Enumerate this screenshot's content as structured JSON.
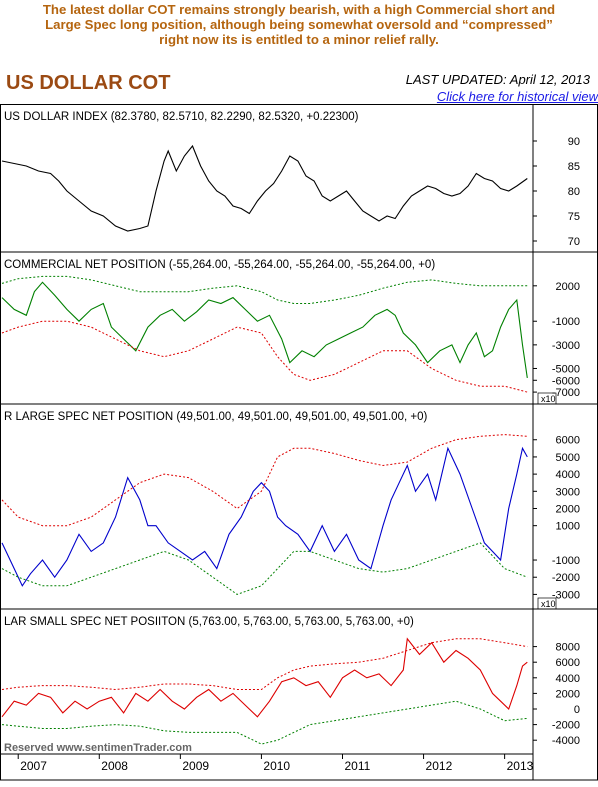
{
  "header": {
    "caption_lines": [
      "The latest dollar COT remains strongly bearish, with a high Commercial short and",
      "Large Spec long position, although being somewhat oversold and “compressed”",
      "right now its is entitled to a minor relief rally."
    ],
    "title": "US DOLLAR COT",
    "last_updated": "LAST UPDATED:  April 12, 2013",
    "historical_link": "Click here for historical view"
  },
  "watermark": "Reserved  www.sentimenTrader.com",
  "colors": {
    "caption": "#b5650f",
    "title": "#9b4a13",
    "link": "#1a1ae6",
    "dollar_line": "#000000",
    "commercial_line": "#008000",
    "large_spec_line": "#0000cc",
    "small_spec_line": "#dd0000",
    "band_red": "#dd0000",
    "band_green": "#008000"
  },
  "chart_data": [
    {
      "type": "line",
      "title": "US DOLLAR INDEX (82.3780, 82.5710, 82.2290, 82.5320, +0.22300)",
      "y_ticks": [
        "90",
        "85",
        "80",
        "75",
        "70"
      ],
      "ylim": [
        69,
        93
      ],
      "series": [
        {
          "color": "#000000",
          "x": [
            2006.8,
            2006.95,
            2007.1,
            2007.25,
            2007.4,
            2007.5,
            2007.6,
            2007.75,
            2007.9,
            2008.05,
            2008.2,
            2008.35,
            2008.5,
            2008.6,
            2008.7,
            2008.8,
            2008.85,
            2008.95,
            2009.05,
            2009.15,
            2009.25,
            2009.35,
            2009.45,
            2009.55,
            2009.65,
            2009.75,
            2009.85,
            2009.95,
            2010.05,
            2010.15,
            2010.25,
            2010.35,
            2010.45,
            2010.55,
            2010.65,
            2010.75,
            2010.85,
            2010.95,
            2011.05,
            2011.15,
            2011.25,
            2011.35,
            2011.45,
            2011.55,
            2011.65,
            2011.75,
            2011.85,
            2011.95,
            2012.05,
            2012.15,
            2012.25,
            2012.35,
            2012.45,
            2012.55,
            2012.65,
            2012.75,
            2012.85,
            2012.95,
            2013.05,
            2013.15,
            2013.28
          ],
          "values": [
            86,
            85.5,
            85,
            84,
            83.5,
            82,
            80,
            78,
            76,
            75,
            73,
            72,
            72.5,
            73,
            80,
            86,
            88,
            84,
            87,
            89,
            85,
            82,
            80,
            79,
            77,
            76.5,
            75.5,
            78,
            80,
            81.5,
            84,
            87,
            86,
            83,
            82,
            79,
            78,
            79,
            80,
            78,
            76,
            75,
            74,
            75,
            74.5,
            77,
            79,
            80,
            81,
            80.5,
            79.5,
            79,
            79.5,
            81,
            83.5,
            82.5,
            82,
            80.5,
            80,
            81,
            82.5
          ]
        }
      ]
    },
    {
      "type": "line",
      "title": "COMMERCIAL NET POSITION (-55,264.00, -55,264.00, -55,264.00, -55,264.00, +0)",
      "y_ticks": [
        "2000",
        "-1000",
        "-3000",
        "-5000",
        "-6000",
        "-7000"
      ],
      "y_multiplier_label": "x10",
      "ylim": [
        -7500,
        3000
      ],
      "series": [
        {
          "name": "",
          "color": "#008000",
          "x": [
            2006.8,
            2006.95,
            2007.1,
            2007.2,
            2007.3,
            2007.45,
            2007.6,
            2007.75,
            2007.9,
            2008.05,
            2008.15,
            2008.3,
            2008.45,
            2008.6,
            2008.75,
            2008.9,
            2009.05,
            2009.2,
            2009.35,
            2009.5,
            2009.65,
            2009.8,
            2009.95,
            2010.1,
            2010.25,
            2010.35,
            2010.5,
            2010.65,
            2010.8,
            2010.95,
            2011.1,
            2011.25,
            2011.4,
            2011.55,
            2011.65,
            2011.75,
            2011.9,
            2012.05,
            2012.2,
            2012.35,
            2012.45,
            2012.55,
            2012.65,
            2012.75,
            2012.85,
            2012.95,
            2013.05,
            2013.15,
            2013.22,
            2013.28
          ],
          "values": [
            1000,
            0,
            -500,
            1500,
            2300,
            1200,
            0,
            -1000,
            0,
            500,
            -1500,
            -2500,
            -3500,
            -1500,
            -500,
            0,
            -1000,
            -200,
            800,
            500,
            1000,
            0,
            -1000,
            -500,
            -2500,
            -4500,
            -3500,
            -4000,
            -3000,
            -2500,
            -2000,
            -1500,
            -500,
            0,
            -500,
            -2000,
            -3000,
            -4500,
            -3500,
            -3000,
            -4500,
            -3000,
            -2000,
            -4000,
            -3500,
            -1500,
            0,
            800,
            -3000,
            -5800
          ]
        },
        {
          "name": "",
          "color": "#dd0000",
          "x": [
            2006.8,
            2007.0,
            2007.3,
            2007.6,
            2007.9,
            2008.2,
            2008.5,
            2008.8,
            2009.1,
            2009.4,
            2009.7,
            2010.0,
            2010.2,
            2010.4,
            2010.6,
            2010.9,
            2011.2,
            2011.5,
            2011.8,
            2012.1,
            2012.4,
            2012.7,
            2013.0,
            2013.28
          ],
          "values": [
            -2000,
            -1500,
            -1000,
            -1000,
            -1500,
            -2500,
            -3500,
            -4000,
            -3500,
            -2500,
            -1500,
            -2000,
            -4000,
            -5500,
            -6000,
            -5500,
            -4500,
            -3500,
            -3500,
            -5000,
            -6000,
            -6500,
            -6500,
            -7000
          ]
        },
        {
          "name": "",
          "color": "#008000",
          "x": [
            2006.8,
            2007.0,
            2007.3,
            2007.6,
            2007.9,
            2008.2,
            2008.5,
            2008.8,
            2009.1,
            2009.4,
            2009.7,
            2010.0,
            2010.2,
            2010.4,
            2010.6,
            2010.9,
            2011.2,
            2011.5,
            2011.8,
            2012.1,
            2012.4,
            2012.7,
            2013.0,
            2013.28
          ],
          "values": [
            2200,
            2600,
            2800,
            2800,
            2500,
            2000,
            1500,
            1500,
            1500,
            1800,
            2000,
            1500,
            800,
            500,
            500,
            800,
            1200,
            1800,
            2300,
            2500,
            2200,
            2000,
            2000,
            2000
          ]
        }
      ]
    },
    {
      "type": "line",
      "title": "R LARGE SPEC NET POSITION (49,501.00, 49,501.00, 49,501.00, 49,501.00, +0)",
      "y_ticks": [
        "6000",
        "5000",
        "4000",
        "3000",
        "2000",
        "1000",
        "-1000",
        "-2000",
        "-3000"
      ],
      "y_multiplier_label": "x10",
      "ylim": [
        -3500,
        6800
      ],
      "series": [
        {
          "name": "",
          "color": "#0000cc",
          "x": [
            2006.8,
            2006.95,
            2007.05,
            2007.15,
            2007.3,
            2007.45,
            2007.6,
            2007.75,
            2007.9,
            2008.05,
            2008.2,
            2008.35,
            2008.5,
            2008.6,
            2008.7,
            2008.85,
            2009.0,
            2009.15,
            2009.3,
            2009.45,
            2009.6,
            2009.75,
            2009.9,
            2010.0,
            2010.1,
            2010.2,
            2010.3,
            2010.45,
            2010.6,
            2010.75,
            2010.9,
            2011.05,
            2011.2,
            2011.35,
            2011.5,
            2011.6,
            2011.7,
            2011.8,
            2011.9,
            2012.05,
            2012.15,
            2012.3,
            2012.45,
            2012.6,
            2012.75,
            2012.85,
            2012.95,
            2013.05,
            2013.15,
            2013.22,
            2013.28
          ],
          "values": [
            0,
            -1500,
            -2500,
            -1800,
            -1000,
            -2000,
            -1000,
            500,
            -500,
            0,
            1500,
            3800,
            2500,
            1000,
            1000,
            0,
            -500,
            -1000,
            -500,
            -1500,
            500,
            1500,
            3000,
            3500,
            3000,
            1500,
            1000,
            500,
            -500,
            1000,
            -500,
            500,
            -1000,
            -1500,
            1000,
            2500,
            3500,
            4500,
            3000,
            4000,
            2500,
            5500,
            4000,
            2000,
            0,
            -500,
            -1000,
            2000,
            4000,
            5500,
            5000
          ]
        },
        {
          "name": "",
          "color": "#dd0000",
          "x": [
            2006.8,
            2007.0,
            2007.3,
            2007.6,
            2007.9,
            2008.2,
            2008.5,
            2008.8,
            2009.1,
            2009.4,
            2009.7,
            2010.0,
            2010.2,
            2010.4,
            2010.6,
            2010.9,
            2011.2,
            2011.5,
            2011.8,
            2012.1,
            2012.4,
            2012.7,
            2013.0,
            2013.28
          ],
          "values": [
            2500,
            1500,
            1000,
            1000,
            1500,
            2500,
            3500,
            4000,
            3800,
            3000,
            2000,
            3000,
            5000,
            5500,
            5500,
            5200,
            4800,
            4500,
            4700,
            5500,
            6000,
            6200,
            6300,
            6200
          ]
        },
        {
          "name": "",
          "color": "#008000",
          "x": [
            2006.8,
            2007.0,
            2007.3,
            2007.6,
            2007.9,
            2008.2,
            2008.5,
            2008.8,
            2009.1,
            2009.4,
            2009.7,
            2010.0,
            2010.2,
            2010.4,
            2010.6,
            2010.9,
            2011.2,
            2011.5,
            2011.8,
            2012.1,
            2012.4,
            2012.7,
            2013.0,
            2013.28
          ],
          "values": [
            -1500,
            -2000,
            -2500,
            -2500,
            -2000,
            -1500,
            -1000,
            -500,
            -1000,
            -2000,
            -3000,
            -2500,
            -1500,
            -500,
            -500,
            -1000,
            -1500,
            -1700,
            -1500,
            -1000,
            -500,
            0,
            -1500,
            -2000
          ]
        }
      ]
    },
    {
      "type": "line",
      "title": "LAR SMALL SPEC NET POSIITON (5,763.00, 5,763.00, 5,763.00, 5,763.00, +0)",
      "y_ticks": [
        "8000",
        "6000",
        "4000",
        "2000",
        "0",
        "-2000",
        "-4000"
      ],
      "ylim": [
        -5000,
        10000
      ],
      "x_tick_labels": [
        "2007",
        "2008",
        "2009",
        "2010",
        "2011",
        "2012",
        "2013"
      ],
      "series": [
        {
          "name": "",
          "color": "#dd0000",
          "x": [
            2006.8,
            2006.95,
            2007.1,
            2007.25,
            2007.4,
            2007.55,
            2007.7,
            2007.85,
            2008.0,
            2008.15,
            2008.3,
            2008.45,
            2008.6,
            2008.75,
            2008.9,
            2009.05,
            2009.2,
            2009.35,
            2009.5,
            2009.65,
            2009.8,
            2009.95,
            2010.1,
            2010.25,
            2010.4,
            2010.55,
            2010.7,
            2010.85,
            2011.0,
            2011.15,
            2011.3,
            2011.45,
            2011.6,
            2011.75,
            2011.8,
            2011.95,
            2012.1,
            2012.25,
            2012.4,
            2012.55,
            2012.7,
            2012.85,
            2012.95,
            2013.05,
            2013.15,
            2013.22,
            2013.28
          ],
          "values": [
            -1000,
            1000,
            500,
            2000,
            1500,
            -500,
            1000,
            0,
            1000,
            1500,
            -500,
            2000,
            1000,
            2500,
            1000,
            0,
            1500,
            2500,
            1000,
            2000,
            500,
            -1000,
            1000,
            3500,
            4000,
            3000,
            3500,
            1500,
            4000,
            5000,
            4000,
            4500,
            3000,
            5000,
            9000,
            7000,
            8500,
            6000,
            7500,
            6500,
            5000,
            2000,
            1000,
            0,
            3000,
            5500,
            6000
          ]
        },
        {
          "name": "",
          "color": "#dd0000",
          "x": [
            2006.8,
            2007.0,
            2007.3,
            2007.6,
            2007.9,
            2008.2,
            2008.5,
            2008.8,
            2009.1,
            2009.4,
            2009.7,
            2010.0,
            2010.2,
            2010.4,
            2010.6,
            2010.9,
            2011.2,
            2011.5,
            2011.8,
            2012.1,
            2012.4,
            2012.7,
            2013.0,
            2013.28
          ],
          "values": [
            2500,
            2800,
            3000,
            3000,
            2800,
            2500,
            2800,
            3200,
            3200,
            3000,
            2500,
            2500,
            4000,
            5000,
            5500,
            5800,
            6000,
            6500,
            7500,
            8500,
            9000,
            9000,
            8500,
            8000
          ]
        },
        {
          "name": "",
          "color": "#008000",
          "x": [
            2006.8,
            2007.0,
            2007.3,
            2007.6,
            2007.9,
            2008.2,
            2008.5,
            2008.8,
            2009.1,
            2009.4,
            2009.7,
            2010.0,
            2010.2,
            2010.4,
            2010.6,
            2010.9,
            2011.2,
            2011.5,
            2011.8,
            2012.1,
            2012.4,
            2012.7,
            2013.0,
            2013.28
          ],
          "values": [
            -2000,
            -2200,
            -2500,
            -2500,
            -2200,
            -2000,
            -2200,
            -2800,
            -3000,
            -3000,
            -3000,
            -4500,
            -4000,
            -3000,
            -2000,
            -1500,
            -1000,
            -500,
            0,
            500,
            1000,
            0,
            -1500,
            -1200
          ]
        }
      ]
    }
  ]
}
